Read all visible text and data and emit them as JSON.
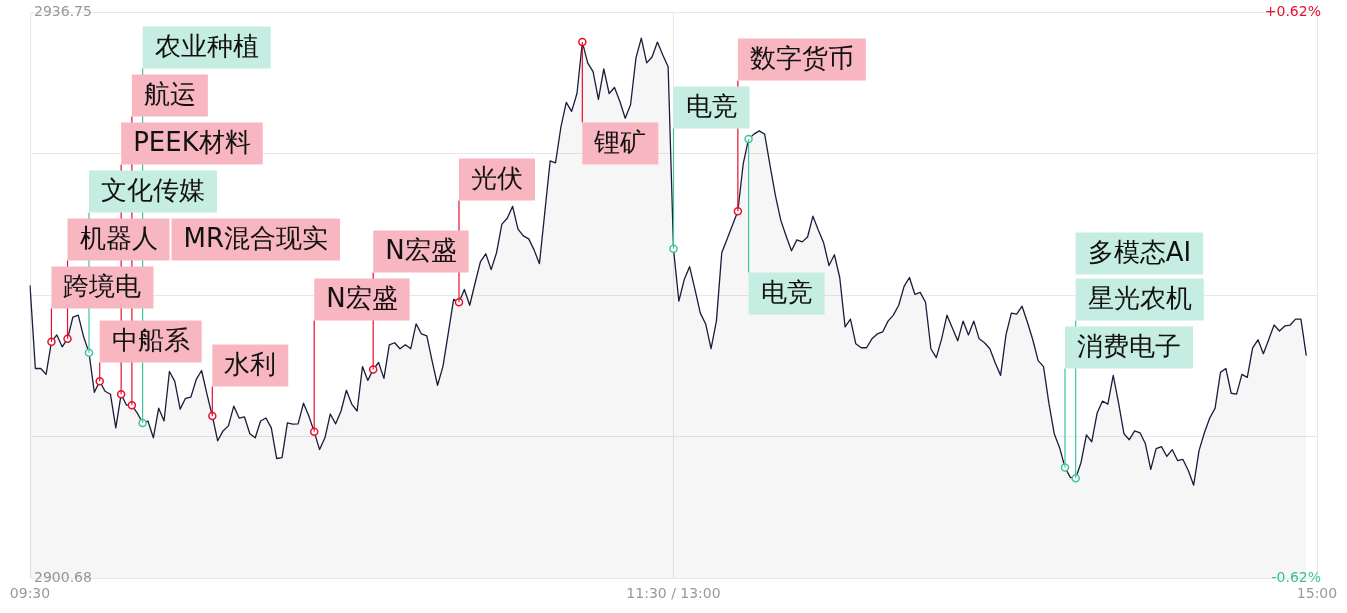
{
  "chart_data": {
    "type": "area",
    "categories": [
      "09:30",
      null,
      null,
      null,
      null,
      null,
      null,
      null,
      null,
      null,
      null,
      null,
      null,
      null,
      null,
      null,
      null,
      null,
      null,
      null,
      null,
      null,
      null,
      null,
      null,
      null,
      null,
      null,
      null,
      null,
      null,
      null,
      null,
      null,
      null,
      null,
      null,
      null,
      null,
      null,
      null,
      null,
      null,
      null,
      null,
      null,
      null,
      null,
      null,
      null,
      null,
      null,
      null,
      null,
      null,
      null,
      null,
      null,
      null,
      null,
      null,
      null,
      null,
      null,
      null,
      null,
      null,
      null,
      null,
      null,
      null,
      null,
      null,
      null,
      null,
      null,
      null,
      null,
      null,
      null,
      null,
      null,
      null,
      null,
      null,
      null,
      null,
      null,
      null,
      null,
      null,
      null,
      null,
      null,
      null,
      null,
      null,
      null,
      null,
      null,
      null,
      null,
      null,
      null,
      null,
      null,
      null,
      null,
      null,
      null,
      null,
      null,
      null,
      null,
      null,
      null,
      null,
      null,
      null,
      null,
      "11:30 / 13:00",
      null,
      null,
      null,
      null,
      null,
      null,
      null,
      null,
      null,
      null,
      null,
      null,
      null,
      null,
      null,
      null,
      null,
      null,
      null,
      null,
      null,
      null,
      null,
      null,
      null,
      null,
      null,
      null,
      null,
      null,
      null,
      null,
      null,
      null,
      null,
      null,
      null,
      null,
      null,
      null,
      null,
      null,
      null,
      null,
      null,
      null,
      null,
      null,
      null,
      null,
      null,
      null,
      null,
      null,
      null,
      null,
      null,
      null,
      null,
      null,
      null,
      null,
      null,
      null,
      null,
      null,
      null,
      null,
      null,
      null,
      null,
      null,
      null,
      null,
      null,
      null,
      null,
      null,
      null,
      null,
      null,
      null,
      null,
      null,
      null,
      null,
      null,
      null,
      null,
      null,
      null,
      null,
      null,
      null,
      null,
      null,
      null,
      null,
      null,
      null,
      null,
      null,
      null,
      null,
      null,
      null,
      null,
      null,
      null,
      null,
      null,
      null,
      null,
      null,
      null,
      null,
      null,
      null,
      null,
      "15:00"
    ],
    "ylim": [
      2900.68,
      2936.75
    ],
    "yticks": [
      2900.68,
      {
        "value": 2909.7,
        "label": null
      },
      {
        "value": 2918.72,
        "label": null
      },
      {
        "value": 2927.73,
        "label": null
      },
      2936.75
    ],
    "y2lim": [
      -0.62,
      0.62
    ],
    "y2ticks": [
      {
        "value": -0.62,
        "label": "-0.62%"
      },
      {
        "value": 0.62,
        "label": "+0.62%"
      }
    ],
    "grid": true,
    "series": [
      {
        "color": "#1b1b3a",
        "values": [
          2919.35,
          2914.05,
          2914.05,
          2913.67,
          2915.75,
          2916.19,
          2915.43,
          2915.94,
          2917.33,
          2917.45,
          2916.07,
          2915.06,
          2912.53,
          2913.23,
          2912.6,
          2912.41,
          2910.26,
          2912.41,
          2911.71,
          2911.71,
          2911.21,
          2910.58,
          2910.7,
          2909.63,
          2911.52,
          2910.7,
          2913.86,
          2913.23,
          2911.46,
          2912.15,
          2912.22,
          2913.35,
          2913.92,
          2912.41,
          2911.02,
          2909.44,
          2910.07,
          2910.39,
          2911.65,
          2910.89,
          2910.96,
          2909.89,
          2909.63,
          2910.7,
          2910.89,
          2910.26,
          2908.31,
          2908.37,
          2910.58,
          2910.5,
          2910.52,
          2911.84,
          2911.02,
          2910.01,
          2908.88,
          2909.63,
          2911.15,
          2910.52,
          2911.34,
          2912.66,
          2911.78,
          2911.34,
          2914.17,
          2913.29,
          2913.98,
          2914.43,
          2913.42,
          2915.56,
          2915.69,
          2915.31,
          2915.56,
          2915.31,
          2916.89,
          2916.25,
          2916.13,
          2914.5,
          2912.98,
          2914.17,
          2916.3,
          2918.46,
          2918.27,
          2919.09,
          2918.08,
          2919.5,
          2920.86,
          2921.36,
          2920.35,
          2921.43,
          2923.25,
          2923.63,
          2924.39,
          2922.94,
          2922.5,
          2922.31,
          2921.61,
          2920.73,
          2924.0,
          2927.29,
          2927.16,
          2929.43,
          2931.01,
          2930.44,
          2931.58,
          2934.86,
          2933.53,
          2932.97,
          2931.2,
          2933.15,
          2931.58,
          2931.96,
          2931.07,
          2930.0,
          2930.88,
          2933.85,
          2935.11,
          2933.53,
          2933.91,
          2934.86,
          2934.04,
          2933.28,
          2921.68,
          2918.34,
          2919.72,
          2920.54,
          2919.09,
          2917.58,
          2916.89,
          2915.31,
          2917.07,
          2921.43,
          2922.3,
          2923.2,
          2924.07,
          2927.1,
          2928.68,
          2928.99,
          2929.2,
          2928.99,
          2927.0,
          2925.08,
          2923.51,
          2922.5,
          2921.55,
          2922.25,
          2922.12,
          2922.43,
          2923.76,
          2922.88,
          2922.06,
          2920.61,
          2921.3,
          2919.85,
          2916.7,
          2917.2,
          2915.62,
          2915.37,
          2915.37,
          2915.94,
          2916.25,
          2916.38,
          2917.07,
          2917.45,
          2918.08,
          2919.28,
          2919.85,
          2918.78,
          2918.9,
          2918.27,
          2915.31,
          2914.74,
          2915.94,
          2917.45,
          2916.63,
          2915.81,
          2917.07,
          2916.19,
          2917.07,
          2915.94,
          2915.69,
          2915.31,
          2914.4,
          2913.61,
          2916.19,
          2917.58,
          2917.52,
          2918.02,
          2917.0,
          2915.88,
          2914.55,
          2914.17,
          2911.84,
          2909.89,
          2909.0,
          2907.74,
          2907.11,
          2907.05,
          2908.06,
          2909.82,
          2909.38,
          2911.21,
          2911.97,
          2911.78,
          2913.61,
          2911.84,
          2909.89,
          2909.51,
          2910.07,
          2909.95,
          2909.25,
          2907.62,
          2908.94,
          2909.07,
          2908.44,
          2908.88,
          2908.18,
          2908.25,
          2907.55,
          2906.61,
          2908.81,
          2909.95,
          2910.89,
          2911.52,
          2913.8,
          2914.05,
          2912.47,
          2912.41,
          2913.67,
          2913.48,
          2915.37,
          2915.88,
          2914.99,
          2915.9,
          2916.82,
          2916.44,
          2916.76,
          2916.82,
          2917.2,
          2917.2,
          2914.87,
          null,
          null
        ]
      },
      {
        "type": "scatter",
        "color": "#e60f2d",
        "marker": "circle",
        "value_labels": [
          null,
          null,
          null,
          null,
          "跨境电",
          null,
          null,
          "机器人",
          null,
          null,
          null,
          null,
          null,
          "中船系",
          null,
          null,
          null,
          "PEEK材料",
          null,
          "航运",
          null,
          null,
          null,
          null,
          null,
          null,
          null,
          null,
          null,
          null,
          null,
          null,
          null,
          null,
          "水利",
          null,
          null,
          null,
          null,
          null,
          null,
          null,
          null,
          null,
          null,
          null,
          null,
          null,
          null,
          null,
          null,
          null,
          null,
          "N宏盛",
          null,
          null,
          null,
          null,
          null,
          null,
          null,
          null,
          null,
          null,
          "N宏盛",
          null,
          null,
          null,
          null,
          null,
          null,
          null,
          null,
          null,
          null,
          null,
          null,
          null,
          null,
          null,
          "光伏",
          null,
          null,
          null,
          null,
          null,
          null,
          null,
          null,
          null,
          null,
          null,
          null,
          null,
          null,
          null,
          null,
          null,
          null,
          null,
          null,
          null,
          null,
          "锂矿",
          null,
          null,
          null,
          null,
          null,
          null,
          null,
          null,
          null,
          null,
          null,
          null,
          null,
          null,
          null,
          null,
          null,
          null,
          null,
          null,
          null,
          null,
          null,
          null,
          null,
          null,
          null,
          null,
          "数字货币",
          null,
          null,
          null,
          null,
          null,
          null,
          null,
          null,
          null,
          null,
          null,
          null,
          null,
          null,
          null,
          null,
          null,
          null,
          null,
          null,
          null,
          null,
          null,
          null,
          null,
          null,
          null,
          null,
          null,
          null,
          null,
          null,
          null,
          null,
          null,
          null,
          null,
          null,
          null,
          null,
          null,
          null,
          null,
          null,
          null,
          null,
          null,
          null,
          null,
          null,
          null,
          null,
          null,
          null,
          null,
          null,
          null,
          null,
          null,
          null,
          null,
          null,
          null,
          null,
          null,
          null,
          null,
          null,
          null,
          null,
          null,
          null,
          null,
          null,
          null,
          null,
          null,
          null,
          null,
          null,
          null,
          null,
          null,
          null,
          null,
          null,
          null,
          null,
          null,
          null,
          null,
          null,
          null,
          null,
          null,
          null,
          null,
          null,
          null,
          null,
          null,
          null,
          null,
          null,
          null,
          null,
          null,
          null
        ],
        "values": [
          null,
          null,
          null,
          null,
          2915.75,
          null,
          null,
          2915.94,
          null,
          null,
          null,
          null,
          null,
          2913.23,
          null,
          null,
          null,
          2912.41,
          null,
          2911.71,
          null,
          null,
          null,
          null,
          null,
          null,
          null,
          null,
          null,
          null,
          null,
          null,
          null,
          null,
          2911.02,
          null,
          null,
          null,
          null,
          null,
          null,
          null,
          null,
          null,
          null,
          null,
          null,
          null,
          null,
          null,
          null,
          null,
          null,
          2910.01,
          null,
          null,
          null,
          null,
          null,
          null,
          null,
          null,
          null,
          null,
          2913.98,
          null,
          null,
          null,
          null,
          null,
          null,
          null,
          null,
          null,
          null,
          null,
          null,
          null,
          null,
          null,
          2918.27,
          null,
          null,
          null,
          null,
          null,
          null,
          null,
          null,
          null,
          null,
          null,
          null,
          null,
          null,
          null,
          null,
          null,
          null,
          null,
          null,
          null,
          null,
          2934.86,
          null,
          null,
          null,
          null,
          null,
          null,
          null,
          null,
          null,
          null,
          null,
          null,
          null,
          null,
          null,
          null,
          null,
          null,
          null,
          null,
          null,
          null,
          null,
          null,
          null,
          null,
          null,
          null,
          2924.07,
          null,
          null,
          null,
          null,
          null,
          null,
          null,
          null,
          null,
          null,
          null,
          null,
          null,
          null,
          null,
          null,
          null,
          null,
          null,
          null,
          null,
          null,
          null,
          null,
          null,
          null,
          null,
          null,
          null,
          null,
          null,
          null,
          null,
          null,
          null,
          null,
          null,
          null,
          null,
          null,
          null,
          null,
          null,
          null,
          null,
          null,
          null,
          null,
          null,
          null,
          null,
          null,
          null,
          null,
          null,
          null,
          null,
          null,
          null,
          null,
          null,
          null,
          null,
          null,
          null,
          null,
          null,
          null,
          null,
          null,
          null,
          null,
          null,
          null,
          null,
          null,
          null,
          null,
          null,
          null,
          null,
          null,
          null,
          null,
          null,
          null,
          null,
          null,
          null,
          null,
          null,
          null,
          null,
          null,
          null,
          null,
          null,
          null,
          null,
          null,
          null,
          null,
          null,
          null,
          null,
          null,
          null,
          null
        ]
      },
      {
        "type": "scatter",
        "color": "#3fc49a",
        "marker": "circle",
        "value_labels": [
          null,
          null,
          null,
          null,
          null,
          null,
          null,
          null,
          null,
          null,
          null,
          "文化传媒",
          null,
          null,
          null,
          null,
          null,
          null,
          null,
          null,
          null,
          "农业种植",
          null,
          null,
          null,
          null,
          null,
          null,
          null,
          null,
          null,
          null,
          null,
          null,
          null,
          null,
          null,
          null,
          null,
          null,
          null,
          null,
          null,
          null,
          null,
          null,
          null,
          null,
          null,
          null,
          null,
          null,
          null,
          null,
          null,
          null,
          null,
          null,
          null,
          null,
          null,
          null,
          null,
          null,
          null,
          null,
          null,
          null,
          null,
          null,
          null,
          null,
          null,
          null,
          null,
          null,
          null,
          null,
          null,
          null,
          null,
          null,
          null,
          null,
          null,
          null,
          null,
          null,
          null,
          null,
          null,
          null,
          null,
          null,
          null,
          null,
          null,
          null,
          null,
          null,
          null,
          null,
          null,
          null,
          null,
          null,
          null,
          null,
          null,
          null,
          null,
          null,
          null,
          null,
          null,
          null,
          null,
          null,
          null,
          null,
          "电竞",
          null,
          null,
          null,
          null,
          null,
          null,
          null,
          null,
          null,
          null,
          null,
          null,
          null,
          "电竞",
          null,
          null,
          null,
          null,
          null,
          null,
          null,
          null,
          null,
          null,
          null,
          null,
          null,
          null,
          null,
          null,
          null,
          null,
          null,
          null,
          null,
          null,
          null,
          null,
          null,
          null,
          null,
          null,
          null,
          null,
          null,
          null,
          null,
          null,
          null,
          null,
          null,
          null,
          null,
          null,
          null,
          null,
          null,
          null,
          null,
          null,
          null,
          null,
          null,
          null,
          null,
          null,
          null,
          null,
          null,
          null,
          null,
          null,
          "消费电子",
          null,
          "星光农机",
          null,
          null,
          null,
          null,
          null,
          null,
          null,
          null,
          null,
          null,
          null,
          null,
          null,
          null,
          null,
          null,
          null,
          null,
          null,
          null,
          null,
          null,
          null,
          null,
          null,
          null,
          null,
          null,
          null,
          null,
          null,
          null,
          null,
          null,
          null,
          null,
          null,
          null,
          null,
          null,
          null,
          null,
          null,
          null,
          null
        ],
        "values": [
          null,
          null,
          null,
          null,
          null,
          null,
          null,
          null,
          null,
          null,
          null,
          2915.06,
          null,
          null,
          null,
          null,
          null,
          null,
          null,
          null,
          null,
          2910.58,
          null,
          null,
          null,
          null,
          null,
          null,
          null,
          null,
          null,
          null,
          null,
          null,
          null,
          null,
          null,
          null,
          null,
          null,
          null,
          null,
          null,
          null,
          null,
          null,
          null,
          null,
          null,
          null,
          null,
          null,
          null,
          null,
          null,
          null,
          null,
          null,
          null,
          null,
          null,
          null,
          null,
          null,
          null,
          null,
          null,
          null,
          null,
          null,
          null,
          null,
          null,
          null,
          null,
          null,
          null,
          null,
          null,
          null,
          null,
          null,
          null,
          null,
          null,
          null,
          null,
          null,
          null,
          null,
          null,
          null,
          null,
          null,
          null,
          null,
          null,
          null,
          null,
          null,
          null,
          null,
          null,
          null,
          null,
          null,
          null,
          null,
          null,
          null,
          null,
          null,
          null,
          null,
          null,
          null,
          null,
          null,
          null,
          null,
          2921.68,
          null,
          null,
          null,
          null,
          null,
          null,
          null,
          null,
          null,
          null,
          null,
          null,
          null,
          2928.68,
          null,
          null,
          null,
          null,
          null,
          null,
          null,
          null,
          null,
          null,
          null,
          null,
          null,
          null,
          null,
          null,
          null,
          null,
          null,
          null,
          null,
          null,
          null,
          null,
          null,
          null,
          null,
          null,
          null,
          null,
          null,
          null,
          null,
          null,
          null,
          null,
          null,
          null,
          null,
          null,
          null,
          null,
          null,
          null,
          null,
          null,
          null,
          null,
          null,
          null,
          null,
          null,
          null,
          null,
          null,
          null,
          null,
          null,
          2907.74,
          null,
          2907.05,
          null,
          null,
          null,
          null,
          null,
          null,
          null,
          null,
          null,
          null,
          null,
          null,
          null,
          null,
          null,
          null,
          null,
          null,
          null,
          null,
          null,
          null,
          null,
          null,
          null,
          null,
          null,
          null,
          null,
          null,
          null,
          null,
          null,
          null,
          null,
          null,
          null,
          null,
          null,
          null,
          null,
          null,
          null,
          null,
          null
        ]
      }
    ],
    "annotations": [
      "MR混合现实",
      "多模态AI"
    ]
  }
}
